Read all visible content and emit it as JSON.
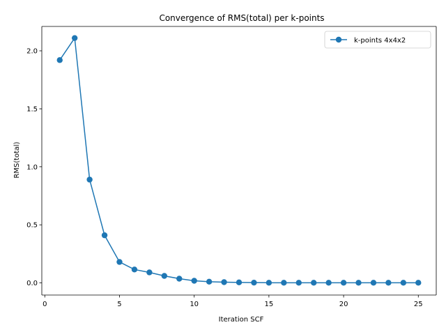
{
  "chart_data": {
    "type": "line",
    "title": "Convergence of RMS(total) per k-points",
    "xlabel": "Iteration SCF",
    "ylabel": "RMS(total)",
    "xlim": [
      -0.2,
      26.2
    ],
    "ylim": [
      -0.105,
      2.21
    ],
    "xticks": [
      0,
      5,
      10,
      15,
      20,
      25
    ],
    "xtick_labels": [
      "0",
      "5",
      "10",
      "15",
      "20",
      "25"
    ],
    "yticks": [
      0.0,
      0.5,
      1.0,
      1.5,
      2.0
    ],
    "ytick_labels": [
      "0.0",
      "0.5",
      "1.0",
      "1.5",
      "2.0"
    ],
    "grid": false,
    "legend_position": "top-right",
    "series": [
      {
        "name": "k-points 4x4x2",
        "color": "#1f77b4",
        "marker": "circle",
        "x": [
          1,
          2,
          3,
          4,
          5,
          6,
          7,
          8,
          9,
          10,
          11,
          12,
          13,
          14,
          15,
          16,
          17,
          18,
          19,
          20,
          21,
          22,
          23,
          24,
          25
        ],
        "y": [
          1.92,
          2.11,
          0.89,
          0.41,
          0.18,
          0.115,
          0.09,
          0.06,
          0.036,
          0.018,
          0.01,
          0.006,
          0.004,
          0.002,
          0.001,
          0.001,
          0.001,
          0.001,
          0.001,
          0.001,
          0.001,
          0.001,
          0.001,
          0.001,
          0.001
        ]
      }
    ]
  }
}
